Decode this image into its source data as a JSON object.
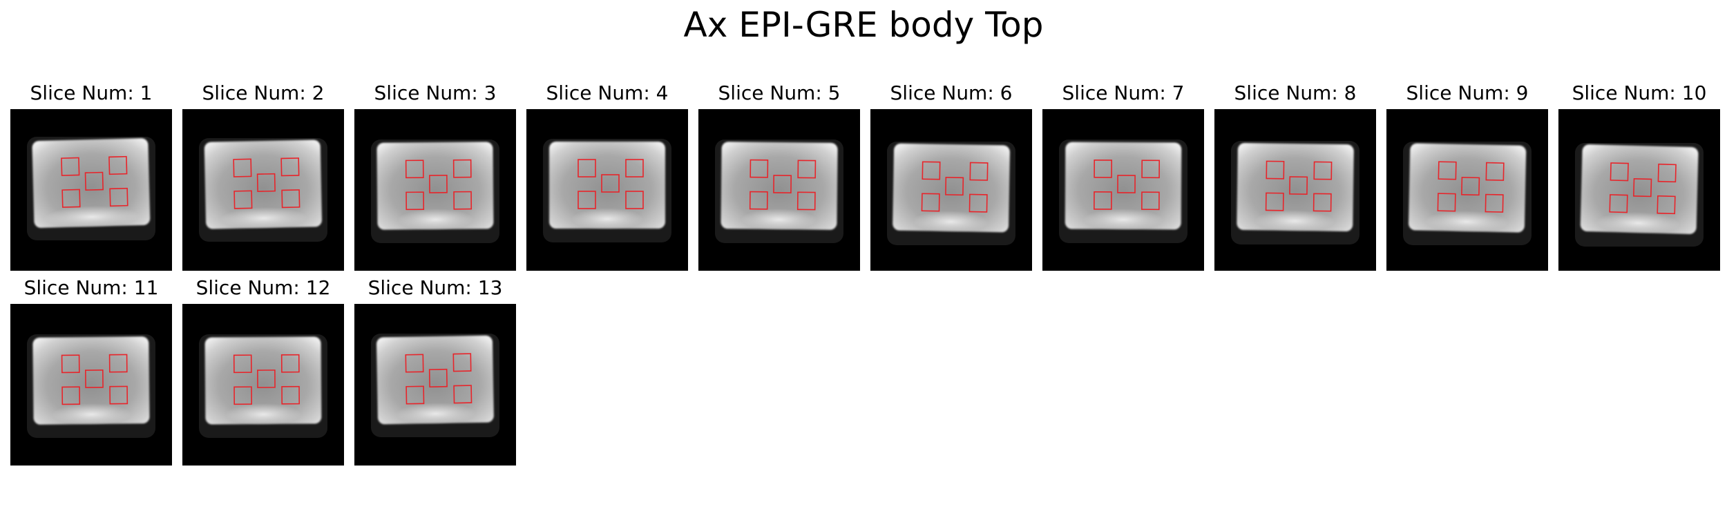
{
  "figure": {
    "title": "Ax EPI-GRE body Top"
  },
  "panels": [
    {
      "label": "Slice Num: 1"
    },
    {
      "label": "Slice Num: 2"
    },
    {
      "label": "Slice Num: 3"
    },
    {
      "label": "Slice Num: 4"
    },
    {
      "label": "Slice Num: 5"
    },
    {
      "label": "Slice Num: 6"
    },
    {
      "label": "Slice Num: 7"
    },
    {
      "label": "Slice Num: 8"
    },
    {
      "label": "Slice Num: 9"
    },
    {
      "label": "Slice Num: 10"
    },
    {
      "label": "Slice Num: 11"
    },
    {
      "label": "Slice Num: 12"
    },
    {
      "label": "Slice Num: 13"
    }
  ],
  "colors": {
    "roi_outline": "#e8242a",
    "background": "#000000",
    "phantom_core": "#8a8a8a",
    "phantom_edge": "#e6e6e6"
  }
}
